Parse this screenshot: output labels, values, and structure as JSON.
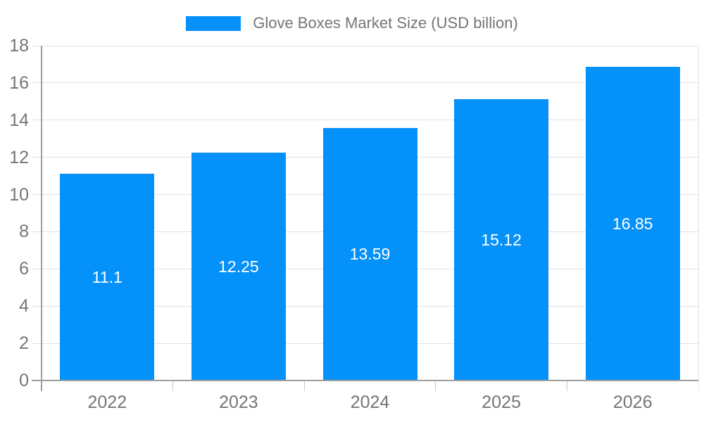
{
  "legend": {
    "label": "Glove Boxes Market Size (USD billion)",
    "position": "top"
  },
  "chart_data": {
    "type": "bar",
    "title": "Glove Boxes Market Size (USD billion)",
    "categories": [
      "2022",
      "2023",
      "2024",
      "2025",
      "2026"
    ],
    "values": [
      11.1,
      12.25,
      13.59,
      15.12,
      16.85
    ],
    "value_labels": [
      "11.1",
      "12.25",
      "13.59",
      "15.12",
      "16.85"
    ],
    "series_name": "Glove Boxes Market Size (USD billion)",
    "xlabel": "",
    "ylabel": "",
    "ylim": [
      0,
      18
    ],
    "yticks": [
      0,
      2,
      4,
      6,
      8,
      10,
      12,
      14,
      16,
      18
    ],
    "grid": true,
    "legend_position": "top"
  },
  "colors": {
    "bar": "#0591fa",
    "value_label": "#ffffff",
    "text": "#757575",
    "axis": "#9e9e9e",
    "grid": "#e2e2e2",
    "tick": "#c9c9c9",
    "background": "#ffffff"
  }
}
